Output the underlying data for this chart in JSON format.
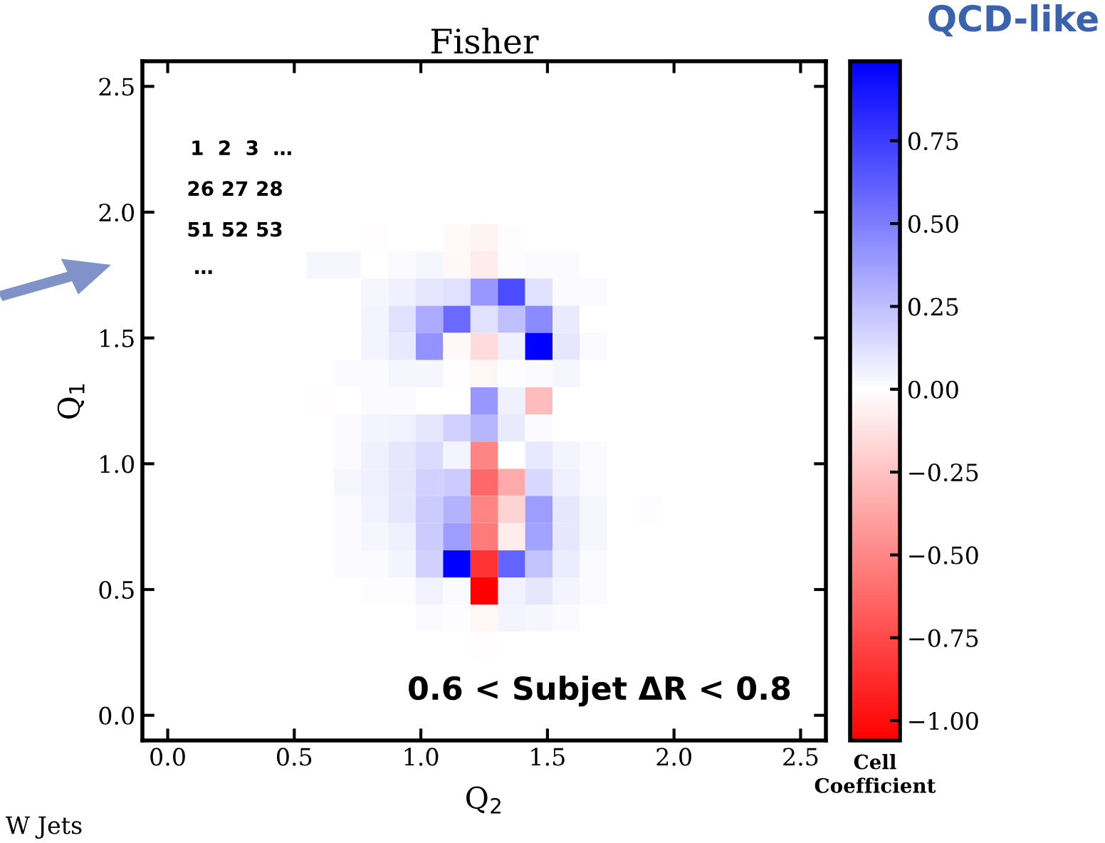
{
  "chart_data": {
    "type": "heatmap",
    "title": "Fisher",
    "xlabel": "Q$_{2}$",
    "ylabel": "Q$_{1}$",
    "clabel": "Cell\nCoefficient",
    "annotations": [
      "0.6 < Subjet ΔR < 0.8",
      "1  2  3  …",
      "26 27 28",
      "51 52 53",
      "…",
      "QCD-like",
      "W Jets"
    ],
    "xlim": [
      -0.1,
      2.6
    ],
    "ylim": [
      -0.1,
      2.6
    ],
    "xticks": [
      {
        "value": 0,
        "label": "0.0"
      },
      {
        "value": 0.5,
        "label": "0.5"
      },
      {
        "value": 1,
        "label": "1.0"
      },
      {
        "value": 1.5,
        "label": "1.5"
      },
      {
        "value": 2,
        "label": "2.0"
      },
      {
        "value": 2.5,
        "label": "2.5"
      }
    ],
    "yticks": [
      {
        "value": 0,
        "label": "0.0"
      },
      {
        "value": 0.5,
        "label": "0.5"
      },
      {
        "value": 1,
        "label": "1.0"
      },
      {
        "value": 1.5,
        "label": "1.5"
      },
      {
        "value": 2,
        "label": "2.0"
      },
      {
        "value": 2.5,
        "label": "2.5"
      }
    ],
    "clim": [
      -1.06,
      0.99
    ],
    "cticks": [
      {
        "value": -1,
        "label": "−1.00"
      },
      {
        "value": -0.75,
        "label": "−0.75"
      },
      {
        "value": -0.5,
        "label": "−0.50"
      },
      {
        "value": -0.25,
        "label": "−0.25"
      },
      {
        "value": 0,
        "label": "0.00"
      },
      {
        "value": 0.25,
        "label": "0.25"
      },
      {
        "value": 0.5,
        "label": "0.50"
      },
      {
        "value": 0.75,
        "label": "0.75"
      }
    ],
    "colors": [
      "#ff0000",
      "#ffffff",
      "#0000ff"
    ],
    "cells": [
      [
        0,
        0,
        0,
        0,
        0,
        0,
        0,
        0,
        0,
        0,
        0,
        0,
        0,
        0,
        0,
        0,
        0,
        0,
        0,
        0,
        0,
        0,
        0,
        0,
        0
      ],
      [
        0,
        0,
        0,
        0,
        0,
        0,
        0,
        0,
        0,
        0,
        0,
        0,
        0,
        0,
        0,
        0,
        0,
        0,
        0,
        0,
        0,
        0,
        0,
        0,
        0
      ],
      [
        0,
        0,
        0,
        0,
        0,
        0,
        0,
        0,
        0,
        0,
        0,
        0,
        0,
        0,
        0,
        0,
        0,
        0,
        0,
        0,
        0,
        0,
        0,
        0,
        0
      ],
      [
        0,
        0,
        0,
        0,
        0,
        0,
        0,
        0,
        0,
        0,
        0,
        0,
        0,
        0,
        0,
        0,
        0,
        0,
        0,
        0,
        0,
        0,
        0,
        0,
        0
      ],
      [
        0,
        0,
        0,
        0,
        0,
        0,
        0,
        0,
        0,
        0,
        0,
        0,
        0,
        0,
        0,
        0,
        0,
        0,
        0,
        0,
        0,
        0,
        0,
        0,
        0
      ],
      [
        0,
        0,
        0,
        0,
        0,
        0,
        0,
        0,
        0,
        0,
        0,
        0,
        0,
        0,
        0,
        0,
        0,
        0,
        0,
        0,
        0,
        0,
        0,
        0,
        0
      ],
      [
        0,
        0,
        0,
        0,
        0,
        0,
        0,
        0,
        -0.01,
        0,
        0,
        -0.02,
        -0.05,
        0.01,
        0,
        0,
        0,
        0,
        0,
        0,
        0,
        0,
        0,
        0,
        0
      ],
      [
        0,
        0,
        0,
        0,
        0,
        0,
        0.03,
        0.03,
        0,
        0.02,
        0.03,
        -0.03,
        -0.08,
        0.01,
        0.02,
        0.02,
        0,
        0,
        0,
        0,
        0,
        0,
        0,
        0,
        0
      ],
      [
        0,
        0,
        0,
        0,
        0,
        0,
        0,
        0,
        0.03,
        0.06,
        0.1,
        0.12,
        0.4,
        0.7,
        0.12,
        0.02,
        0.02,
        0,
        0,
        0,
        0,
        0,
        0,
        0,
        0
      ],
      [
        0,
        0,
        0,
        0,
        0,
        0,
        0,
        0,
        0.04,
        0.12,
        0.33,
        0.58,
        0.12,
        0.25,
        0.45,
        0.08,
        0,
        0,
        0,
        0,
        0,
        0,
        0,
        0,
        0
      ],
      [
        0,
        0,
        0,
        0,
        0,
        0,
        0,
        0,
        0.04,
        0.09,
        0.42,
        -0.03,
        -0.15,
        0.06,
        0.99,
        0.1,
        0.02,
        0,
        0,
        0,
        0,
        0,
        0,
        0,
        0
      ],
      [
        0,
        0,
        0,
        0,
        0,
        0,
        0,
        0.02,
        0.02,
        0.03,
        0.03,
        -0.01,
        -0.04,
        0.01,
        0.02,
        0.03,
        0,
        0,
        0,
        0,
        0,
        0,
        0,
        0,
        0
      ],
      [
        0,
        0,
        0,
        0,
        0,
        0,
        -0.01,
        0,
        0.02,
        0.02,
        0,
        0,
        0.4,
        0.06,
        -0.28,
        0,
        0,
        0,
        0,
        0,
        0,
        0,
        0,
        0,
        0
      ],
      [
        0,
        0,
        0,
        0,
        0,
        0,
        0,
        0.02,
        0.04,
        0.05,
        0.1,
        0.18,
        0.28,
        0.08,
        0.02,
        0,
        0,
        0,
        0,
        0,
        0,
        0,
        0,
        0,
        0
      ],
      [
        0,
        0,
        0,
        0,
        0,
        0,
        0,
        0.02,
        0.06,
        0.1,
        0.14,
        0.04,
        -0.5,
        0,
        0.09,
        0.04,
        0.02,
        0,
        0,
        0,
        0,
        0,
        0,
        0,
        0
      ],
      [
        0,
        0,
        0,
        0,
        0,
        0,
        0,
        0.03,
        0.06,
        0.1,
        0.18,
        0.2,
        -0.62,
        -0.35,
        0.15,
        0.06,
        0.02,
        0,
        0,
        0,
        0,
        0,
        0,
        0,
        0
      ],
      [
        0,
        0,
        0,
        0,
        0,
        0,
        0,
        0.02,
        0.05,
        0.1,
        0.2,
        0.3,
        -0.5,
        -0.18,
        0.38,
        0.1,
        0.03,
        0,
        0.01,
        0,
        0,
        0,
        0,
        0,
        0
      ],
      [
        0,
        0,
        0,
        0,
        0,
        0,
        0,
        0.02,
        0.03,
        0.06,
        0.2,
        0.38,
        -0.55,
        -0.08,
        0.36,
        0.1,
        0.03,
        0,
        0,
        0,
        0,
        0,
        0,
        0,
        0
      ],
      [
        0,
        0,
        0,
        0,
        0,
        0,
        0,
        0.02,
        0.02,
        0.04,
        0.18,
        0.99,
        -0.85,
        0.6,
        0.23,
        0.07,
        0.02,
        0,
        0,
        0,
        0,
        0,
        0,
        0,
        0
      ],
      [
        0,
        0,
        0,
        0,
        0,
        0,
        0,
        0,
        0.01,
        0.01,
        0.05,
        0.02,
        -1.06,
        0.05,
        0.1,
        0.04,
        0.02,
        0,
        0,
        0,
        0,
        0,
        0,
        0,
        0
      ],
      [
        0,
        0,
        0,
        0,
        0,
        0,
        0,
        0,
        0,
        0,
        0.02,
        0.01,
        -0.04,
        0.04,
        0.03,
        0.02,
        0,
        0,
        0,
        0,
        0,
        0,
        0,
        0,
        0
      ],
      [
        0,
        0,
        0,
        0,
        0,
        0,
        0,
        0,
        0,
        0,
        0,
        0,
        -0.01,
        0,
        0,
        0,
        0,
        0,
        0,
        0,
        0,
        0,
        0,
        0,
        0
      ],
      [
        0,
        0,
        0,
        0,
        0,
        0,
        0,
        0,
        0,
        0,
        0,
        0,
        0,
        0,
        0,
        0,
        0,
        0,
        0,
        0,
        0,
        0,
        0,
        0,
        0
      ],
      [
        0,
        0,
        0,
        0,
        0,
        0,
        0,
        0,
        0,
        0,
        0,
        0,
        0,
        0,
        0,
        0,
        0,
        0,
        0,
        0,
        0,
        0,
        0,
        0,
        0
      ],
      [
        0,
        0,
        0,
        0,
        0,
        0,
        0,
        0,
        0,
        0,
        0,
        0,
        0,
        0,
        0,
        0,
        0,
        0,
        0,
        0,
        0,
        0,
        0,
        0,
        0
      ]
    ]
  }
}
